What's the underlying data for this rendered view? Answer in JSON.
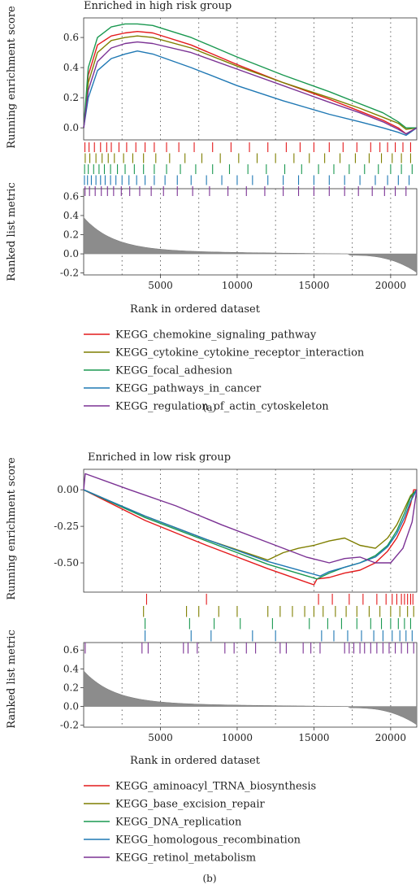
{
  "chart_data": [
    {
      "type": "line",
      "panel": "(a)",
      "title": "Enriched in high risk group",
      "xlabel": "Rank in ordered dataset",
      "ylabel_es": "Running enrichment score",
      "ylabel_metric": "Ranked list metric",
      "xlim": [
        0,
        21700
      ],
      "es_ylim": [
        -0.08,
        0.73
      ],
      "es_ticks": [
        "0.0",
        "0.2",
        "0.4",
        "0.6"
      ],
      "metric_ylim": [
        -0.22,
        0.68
      ],
      "metric_ticks": [
        "-0.2",
        "0.0",
        "0.2",
        "0.4",
        "0.6"
      ],
      "x_ticks": [
        5000,
        10000,
        15000,
        20000
      ],
      "grid_x": [
        2500,
        5000,
        7500,
        10000,
        12500,
        15000,
        17500,
        20000
      ],
      "series": [
        {
          "name": "KEGG_chemokine_signaling_pathway",
          "color": "#e41a1c",
          "x": [
            0,
            300,
            900,
            1800,
            2700,
            3500,
            4500,
            7000,
            10000,
            13000,
            16000,
            18000,
            19500,
            20500,
            21000,
            21700
          ],
          "y": [
            0.0,
            0.35,
            0.55,
            0.61,
            0.63,
            0.64,
            0.63,
            0.55,
            0.42,
            0.3,
            0.19,
            0.11,
            0.05,
            0.0,
            -0.04,
            0.0
          ],
          "hits": [
            80,
            350,
            700,
            1100,
            1500,
            1800,
            2300,
            2800,
            3400,
            4000,
            4600,
            5400,
            6200,
            7200,
            8400,
            9600,
            10800,
            12000,
            13200,
            14100,
            15000,
            16000,
            16900,
            17800,
            18700,
            19300,
            19800,
            20300,
            20800,
            21300
          ]
        },
        {
          "name": "KEGG_cytokine_cytokine_receptor_interaction",
          "color": "#7f7f00",
          "x": [
            0,
            300,
            900,
            1800,
            2700,
            3500,
            4500,
            7000,
            10000,
            13000,
            16000,
            18000,
            19500,
            20500,
            21000,
            21700
          ],
          "y": [
            0.0,
            0.3,
            0.5,
            0.58,
            0.6,
            0.61,
            0.6,
            0.53,
            0.41,
            0.3,
            0.2,
            0.13,
            0.07,
            0.03,
            -0.01,
            0.0
          ],
          "hits": [
            100,
            400,
            800,
            1200,
            1600,
            2000,
            2600,
            3200,
            3900,
            4700,
            5600,
            6600,
            7700,
            8900,
            10100,
            11300,
            12500,
            13700,
            14700,
            15700,
            16700,
            17700,
            18600,
            19400,
            20100,
            20700,
            21300
          ]
        },
        {
          "name": "KEGG_focal_adhesion",
          "color": "#1a9850",
          "x": [
            0,
            300,
            900,
            1800,
            2700,
            3500,
            4500,
            7000,
            10000,
            13000,
            16000,
            18000,
            19500,
            20500,
            21000,
            21700
          ],
          "y": [
            0.0,
            0.4,
            0.6,
            0.67,
            0.69,
            0.69,
            0.68,
            0.6,
            0.47,
            0.35,
            0.24,
            0.16,
            0.1,
            0.04,
            0.0,
            0.0
          ],
          "hits": [
            60,
            300,
            650,
            1000,
            1350,
            1750,
            2200,
            2700,
            3300,
            3900,
            4600,
            5400,
            6300,
            7300,
            8400,
            9500,
            10700,
            11900,
            13100,
            14200,
            15300,
            16300,
            17300,
            18300,
            19200,
            20000,
            20700,
            21400
          ]
        },
        {
          "name": "KEGG_pathways_in_cancer",
          "color": "#1f78b4",
          "x": [
            0,
            300,
            900,
            1800,
            2700,
            3500,
            4500,
            7000,
            10000,
            13000,
            16000,
            18000,
            19500,
            20500,
            21000,
            21700
          ],
          "y": [
            0.0,
            0.2,
            0.38,
            0.46,
            0.49,
            0.51,
            0.49,
            0.4,
            0.28,
            0.18,
            0.09,
            0.04,
            0.0,
            -0.03,
            -0.05,
            0.0
          ],
          "hits": [
            50,
            250,
            500,
            800,
            1100,
            1400,
            1750,
            2100,
            2500,
            2950,
            3450,
            4000,
            4600,
            5300,
            6100,
            7000,
            8000,
            9000,
            10000,
            11000,
            12000,
            13000,
            14000,
            15000,
            16000,
            17000,
            18000,
            19000,
            19800,
            20500,
            21200
          ]
        },
        {
          "name": "KEGG_regulation_of_actin_cytoskeleton",
          "color": "#7b3294",
          "x": [
            0,
            300,
            900,
            1800,
            2700,
            3500,
            4500,
            7000,
            10000,
            13000,
            16000,
            18000,
            19500,
            20500,
            21000,
            21700
          ],
          "y": [
            0.0,
            0.25,
            0.44,
            0.53,
            0.56,
            0.57,
            0.56,
            0.5,
            0.39,
            0.28,
            0.17,
            0.1,
            0.04,
            -0.01,
            -0.04,
            0.0
          ],
          "hits": [
            90,
            380,
            750,
            1150,
            1550,
            1950,
            2450,
            3000,
            3650,
            4400,
            5200,
            6100,
            7100,
            8200,
            9400,
            10600,
            11800,
            13000,
            14000,
            15000,
            16000,
            17000,
            17900,
            18800,
            19600,
            20300,
            21000
          ]
        }
      ]
    },
    {
      "type": "line",
      "panel": "(b)",
      "title": "Enriched in low risk group",
      "xlabel": "Rank in ordered dataset",
      "ylabel_es": "Running enrichment score",
      "ylabel_metric": "Ranked list metric",
      "xlim": [
        0,
        21700
      ],
      "es_ylim": [
        -0.7,
        0.14
      ],
      "es_ticks": [
        "0.00",
        "-0.25",
        "-0.50"
      ],
      "metric_ylim": [
        -0.22,
        0.68
      ],
      "metric_ticks": [
        "-0.2",
        "0.0",
        "0.2",
        "0.4",
        "0.6"
      ],
      "x_ticks": [
        5000,
        10000,
        15000,
        20000
      ],
      "grid_x": [
        2500,
        5000,
        7500,
        10000,
        12500,
        15000,
        17500,
        20000
      ],
      "series": [
        {
          "name": "KEGG_aminoacyl_TRNA_biosynthesis",
          "color": "#e41a1c",
          "x": [
            0,
            4000,
            8000,
            12000,
            15000,
            15200,
            16000,
            17000,
            18000,
            19000,
            19800,
            20400,
            20900,
            21300,
            21500,
            21700
          ],
          "y": [
            0.0,
            -0.21,
            -0.38,
            -0.54,
            -0.65,
            -0.61,
            -0.6,
            -0.57,
            -0.55,
            -0.5,
            -0.42,
            -0.33,
            -0.22,
            -0.1,
            0.0,
            0.0
          ],
          "hits": [
            4100,
            8000,
            15300,
            16200,
            17300,
            18200,
            19100,
            19700,
            20100,
            20400,
            20700,
            20900,
            21100,
            21300,
            21450
          ]
        },
        {
          "name": "KEGG_base_excision_repair",
          "color": "#7f7f00",
          "x": [
            0,
            4000,
            8000,
            12000,
            13000,
            14000,
            15000,
            16000,
            17000,
            18000,
            19000,
            19800,
            20400,
            20900,
            21300,
            21700
          ],
          "y": [
            0.0,
            -0.18,
            -0.34,
            -0.48,
            -0.43,
            -0.4,
            -0.38,
            -0.35,
            -0.33,
            -0.38,
            -0.4,
            -0.33,
            -0.24,
            -0.13,
            -0.04,
            0.0
          ],
          "hits": [
            3900,
            6700,
            7500,
            8800,
            10000,
            12000,
            12800,
            13600,
            14400,
            15000,
            15600,
            16400,
            17100,
            17800,
            18600,
            19300,
            20000,
            20600,
            21100,
            21500
          ]
        },
        {
          "name": "KEGG_DNA_replication",
          "color": "#1a9850",
          "x": [
            0,
            4000,
            8000,
            12000,
            15200,
            16000,
            17000,
            18000,
            19000,
            19800,
            20400,
            20900,
            21300,
            21700
          ],
          "y": [
            0.0,
            -0.19,
            -0.35,
            -0.51,
            -0.61,
            -0.57,
            -0.53,
            -0.5,
            -0.45,
            -0.38,
            -0.28,
            -0.16,
            -0.05,
            0.0
          ],
          "hits": [
            4000,
            6900,
            8500,
            10200,
            12300,
            14700,
            15900,
            16800,
            17800,
            18700,
            19400,
            20000,
            20500,
            20900,
            21300
          ]
        },
        {
          "name": "KEGG_homologous_recombination",
          "color": "#1f78b4",
          "x": [
            0,
            4000,
            8000,
            12000,
            15400,
            16000,
            17000,
            18000,
            19000,
            19800,
            20400,
            20900,
            21300,
            21700
          ],
          "y": [
            0.0,
            -0.18,
            -0.34,
            -0.49,
            -0.59,
            -0.56,
            -0.53,
            -0.5,
            -0.46,
            -0.39,
            -0.3,
            -0.19,
            -0.08,
            0.0
          ],
          "hits": [
            4000,
            7000,
            8300,
            11000,
            12500,
            15500,
            16300,
            17200,
            18100,
            18900,
            19500,
            20100,
            20600,
            21000,
            21400
          ]
        },
        {
          "name": "KEGG_retinol_metabolism",
          "color": "#7b3294",
          "x": [
            0,
            100,
            3000,
            6000,
            9000,
            12000,
            14500,
            16000,
            17000,
            18000,
            19000,
            20000,
            20800,
            21400,
            21700
          ],
          "y": [
            0.0,
            0.11,
            0.0,
            -0.11,
            -0.24,
            -0.36,
            -0.46,
            -0.5,
            -0.47,
            -0.46,
            -0.5,
            -0.5,
            -0.4,
            -0.22,
            0.0
          ],
          "hits": [
            100,
            3800,
            4200,
            6500,
            6800,
            7400,
            9200,
            9800,
            10600,
            11200,
            12800,
            13200,
            14300,
            14800,
            15400,
            17000,
            17300,
            17600,
            18000,
            18300,
            18700,
            19100,
            19500,
            19900,
            20300,
            20700,
            21100,
            21500
          ]
        }
      ]
    }
  ]
}
